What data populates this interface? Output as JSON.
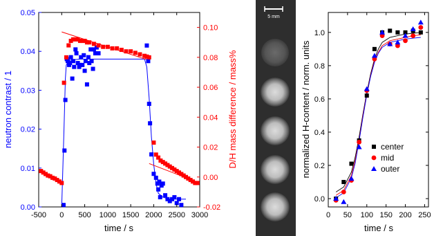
{
  "chart_data": [
    {
      "type": "scatter",
      "xlabel": "time / s",
      "ylabel_left": "neutron contrast / 1",
      "ylabel_right": "D/H mass difference / mass%",
      "xlim": [
        -500,
        3000
      ],
      "ylim_left": [
        0.0,
        0.05
      ],
      "ylim_right": [
        -0.02,
        0.11
      ],
      "x_ticks": [
        -500,
        0,
        500,
        1000,
        1500,
        2000,
        2500,
        3000
      ],
      "y_ticks_left": [
        0.0,
        0.01,
        0.02,
        0.03,
        0.04,
        0.05
      ],
      "y_ticks_right": [
        -0.02,
        0.0,
        0.02,
        0.04,
        0.06,
        0.08,
        0.1
      ],
      "colors": {
        "left": "#0000ff",
        "right": "#ff0000"
      },
      "series": [
        {
          "axis": "left",
          "color": "#0000ff",
          "marker": "square",
          "x": [
            40,
            60,
            80,
            110,
            130,
            160,
            180,
            200,
            230,
            250,
            270,
            300,
            320,
            350,
            380,
            400,
            420,
            450,
            480,
            500,
            520,
            550,
            580,
            600,
            630,
            650,
            680,
            700,
            730,
            760,
            800,
            1850,
            1880,
            1900,
            1920,
            1950,
            2000,
            2050,
            2080,
            2100,
            2120,
            2140,
            2170,
            2200,
            2250,
            2300,
            2350,
            2400,
            2450,
            2500,
            2550,
            2600
          ],
          "y": [
            0.0005,
            0.0145,
            0.0275,
            0.038,
            0.0375,
            0.0365,
            0.037,
            0.0385,
            0.033,
            0.0375,
            0.036,
            0.0405,
            0.0395,
            0.037,
            0.036,
            0.0365,
            0.0385,
            0.0365,
            0.039,
            0.035,
            0.0375,
            0.0315,
            0.0385,
            0.037,
            0.0405,
            0.0375,
            0.0355,
            0.0405,
            0.0395,
            0.041,
            0.0395,
            0.0415,
            0.0375,
            0.0265,
            0.0215,
            0.0135,
            0.0085,
            0.0075,
            0.006,
            0.0045,
            0.0065,
            0.0025,
            0.0055,
            0.006,
            0.003,
            0.002,
            0.0015,
            0.002,
            0.0025,
            0.001,
            0.002,
            0.0005
          ]
        },
        {
          "axis": "right",
          "color": "#ff0000",
          "marker": "square",
          "x": [
            -450,
            -400,
            -350,
            -300,
            -250,
            -200,
            -150,
            -100,
            -50,
            0,
            50,
            100,
            150,
            200,
            250,
            300,
            350,
            400,
            450,
            500,
            550,
            600,
            700,
            800,
            900,
            1000,
            1100,
            1200,
            1300,
            1400,
            1500,
            1600,
            1700,
            1800,
            1850,
            1900,
            2000,
            2050,
            2100,
            2150,
            2200,
            2250,
            2300,
            2350,
            2400,
            2450,
            2500,
            2550,
            2600,
            2650,
            2700,
            2750,
            2800,
            2850,
            2900,
            2950
          ],
          "y": [
            0.004,
            0.003,
            0.002,
            0.001,
            0.0005,
            -0.0005,
            -0.001,
            -0.002,
            -0.003,
            -0.004,
            0.063,
            0.08,
            0.088,
            0.091,
            0.092,
            0.092,
            0.092,
            0.091,
            0.091,
            0.091,
            0.09,
            0.09,
            0.089,
            0.088,
            0.087,
            0.087,
            0.086,
            0.086,
            0.085,
            0.084,
            0.084,
            0.083,
            0.082,
            0.081,
            0.0805,
            0.08,
            0.023,
            0.015,
            0.013,
            0.011,
            0.01,
            0.009,
            0.008,
            0.007,
            0.006,
            0.005,
            0.004,
            0.003,
            0.002,
            0.001,
            0.0,
            -0.001,
            -0.002,
            -0.003,
            -0.004,
            -0.004
          ]
        }
      ],
      "fit_lines": [
        {
          "axis": "left",
          "color": "#0000ff",
          "x": [
            0,
            50,
            80,
            100,
            150,
            200,
            400,
            800,
            1200,
            1600,
            1800,
            1850,
            1900,
            1950,
            2000,
            2050,
            2100,
            2200,
            2350,
            2700
          ],
          "y": [
            0.0,
            0.02,
            0.033,
            0.0365,
            0.0375,
            0.0378,
            0.038,
            0.038,
            0.038,
            0.038,
            0.038,
            0.036,
            0.028,
            0.018,
            0.011,
            0.006,
            0.0035,
            0.0025,
            0.002,
            0.002
          ]
        },
        {
          "axis": "right",
          "color": "#ff0000",
          "x": [
            0,
            1900
          ],
          "y": [
            0.097,
            0.078
          ]
        },
        {
          "axis": "right",
          "color": "#ff0000",
          "x": [
            1900,
            3000
          ],
          "y": [
            0.009,
            -0.004
          ]
        }
      ]
    },
    {
      "type": "scatter",
      "xlabel": "time / s",
      "ylabel": "normalized H-content / norm. units",
      "xlim": [
        0,
        260
      ],
      "ylim": [
        -0.05,
        1.12
      ],
      "x_ticks": [
        0,
        50,
        100,
        150,
        200,
        250
      ],
      "y_ticks": [
        0.0,
        0.2,
        0.4,
        0.6,
        0.8,
        1.0
      ],
      "legend_position": "center-right",
      "series": [
        {
          "name": "center",
          "color": "#000000",
          "marker": "square",
          "x": [
            20,
            40,
            60,
            80,
            100,
            120,
            140,
            160,
            180,
            200,
            220,
            240
          ],
          "y": [
            0.0,
            0.1,
            0.21,
            0.35,
            0.62,
            0.9,
            1.0,
            1.01,
            1.0,
            1.0,
            1.01,
            1.0
          ]
        },
        {
          "name": "mid",
          "color": "#ff0000",
          "marker": "circle",
          "x": [
            20,
            40,
            60,
            80,
            100,
            120,
            140,
            160,
            180,
            200,
            220,
            240
          ],
          "y": [
            -0.01,
            0.04,
            0.11,
            0.34,
            0.65,
            0.84,
            0.98,
            0.93,
            0.92,
            0.95,
            0.98,
            1.03
          ]
        },
        {
          "name": "outer",
          "color": "#0000ff",
          "marker": "triangle",
          "x": [
            20,
            40,
            60,
            80,
            100,
            120,
            140,
            160,
            180,
            200,
            220,
            240
          ],
          "y": [
            0.0,
            -0.02,
            0.12,
            0.31,
            0.66,
            0.86,
            1.0,
            0.93,
            0.94,
            0.98,
            1.02,
            1.06
          ]
        }
      ],
      "fit_lines": [
        {
          "color": "#000000",
          "x": [
            20,
            40,
            60,
            70,
            80,
            90,
            100,
            110,
            120,
            130,
            140,
            160,
            180,
            200,
            220,
            240
          ],
          "y": [
            0.04,
            0.07,
            0.16,
            0.25,
            0.37,
            0.51,
            0.64,
            0.75,
            0.84,
            0.9,
            0.94,
            0.97,
            0.98,
            0.99,
            0.995,
            1.0
          ]
        },
        {
          "color": "#ff0000",
          "x": [
            20,
            40,
            60,
            70,
            80,
            90,
            100,
            110,
            120,
            130,
            140,
            160,
            180,
            200,
            220,
            240
          ],
          "y": [
            0.02,
            0.05,
            0.14,
            0.23,
            0.35,
            0.5,
            0.63,
            0.74,
            0.83,
            0.88,
            0.92,
            0.95,
            0.96,
            0.97,
            0.98,
            0.985
          ]
        },
        {
          "color": "#0000ff",
          "x": [
            20,
            40,
            60,
            70,
            80,
            90,
            100,
            110,
            120,
            130,
            140,
            160,
            180,
            200,
            220,
            240
          ],
          "y": [
            0.005,
            0.035,
            0.125,
            0.215,
            0.345,
            0.49,
            0.625,
            0.735,
            0.82,
            0.875,
            0.91,
            0.94,
            0.95,
            0.96,
            0.965,
            0.97
          ]
        }
      ]
    }
  ],
  "image_panel": {
    "scale_label": "5 mm",
    "sample_count": 5
  }
}
